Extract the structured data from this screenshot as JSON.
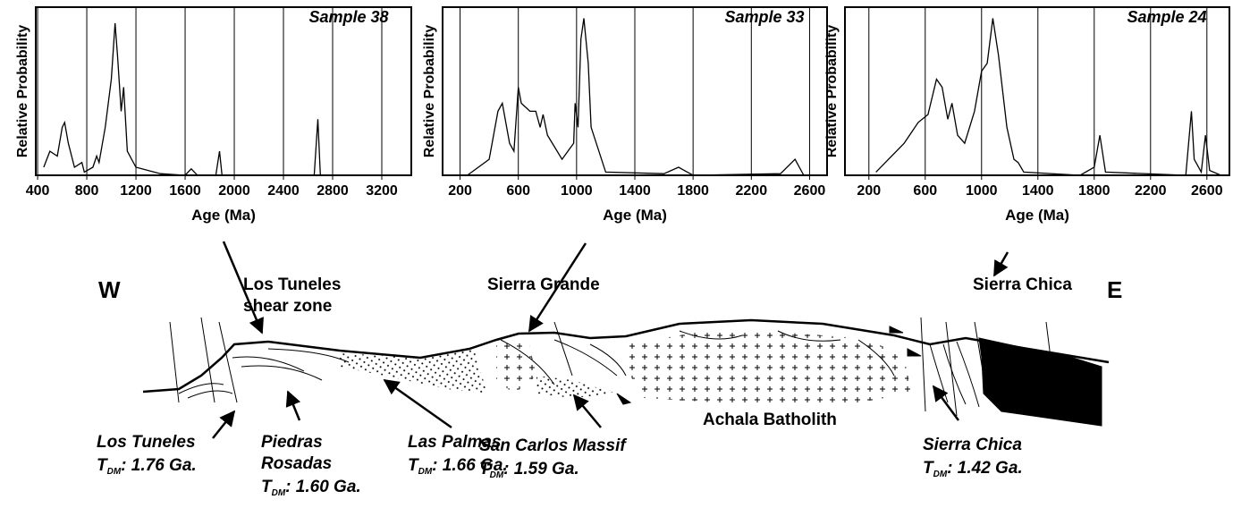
{
  "chart_data": [
    {
      "type": "line",
      "title": "Sample 38",
      "xlabel": "Age (Ma)",
      "ylabel": "Relative Probability",
      "color": "#000000",
      "grid": true,
      "x": [
        450,
        500,
        560,
        600,
        620,
        650,
        700,
        760,
        780,
        850,
        880,
        900,
        950,
        1000,
        1030,
        1050,
        1080,
        1100,
        1130,
        1200,
        1300,
        1400,
        1600,
        1650,
        1700,
        1850,
        1880,
        1900,
        2650,
        2680,
        2700,
        3000
      ],
      "values": [
        0.05,
        0.15,
        0.12,
        0.3,
        0.33,
        0.2,
        0.05,
        0.08,
        0.02,
        0.05,
        0.12,
        0.08,
        0.3,
        0.6,
        0.95,
        0.75,
        0.4,
        0.55,
        0.15,
        0.05,
        0.03,
        0.01,
        0.0,
        0.04,
        0.0,
        0.0,
        0.15,
        0.0,
        0.0,
        0.35,
        0.0,
        0.0
      ],
      "xlim": [
        385,
        3440
      ],
      "xticks": [
        400,
        800,
        1200,
        1600,
        2000,
        2400,
        2800,
        3200
      ],
      "ylim": [
        0,
        1.05
      ]
    },
    {
      "type": "line",
      "title": "Sample 33",
      "xlabel": "Age (Ma)",
      "ylabel": "Relative Probability",
      "color": "#000000",
      "grid": true,
      "x": [
        250,
        400,
        460,
        490,
        540,
        570,
        600,
        620,
        680,
        720,
        750,
        770,
        800,
        900,
        980,
        990,
        1010,
        1030,
        1050,
        1080,
        1100,
        1200,
        1600,
        1700,
        1800,
        2400,
        2500,
        2560
      ],
      "values": [
        0.0,
        0.1,
        0.4,
        0.45,
        0.2,
        0.15,
        0.55,
        0.45,
        0.4,
        0.4,
        0.3,
        0.38,
        0.25,
        0.1,
        0.2,
        0.45,
        0.3,
        0.85,
        0.98,
        0.7,
        0.3,
        0.02,
        0.01,
        0.05,
        0.0,
        0.01,
        0.1,
        0.0
      ],
      "xlim": [
        80,
        2720
      ],
      "xticks": [
        200,
        600,
        1000,
        1400,
        1800,
        2200,
        2600
      ],
      "ylim": [
        0,
        1.05
      ]
    },
    {
      "type": "line",
      "title": "Sample 24",
      "xlabel": "Age (Ma)",
      "ylabel": "Relative Probability",
      "color": "#000000",
      "grid": true,
      "x": [
        250,
        450,
        550,
        620,
        680,
        720,
        760,
        790,
        830,
        880,
        950,
        1000,
        1040,
        1080,
        1120,
        1180,
        1230,
        1260,
        1300,
        1700,
        1800,
        1840,
        1880,
        2450,
        2490,
        2510,
        2560,
        2590,
        2620,
        2700
      ],
      "values": [
        0.02,
        0.2,
        0.33,
        0.38,
        0.6,
        0.55,
        0.35,
        0.45,
        0.25,
        0.2,
        0.4,
        0.65,
        0.7,
        0.98,
        0.75,
        0.3,
        0.1,
        0.08,
        0.02,
        0.0,
        0.05,
        0.25,
        0.02,
        0.0,
        0.4,
        0.1,
        0.02,
        0.25,
        0.03,
        0.0
      ],
      "xlim": [
        30,
        2760
      ],
      "xticks": [
        200,
        600,
        1000,
        1400,
        1800,
        2200,
        2600
      ],
      "ylim": [
        0,
        1.05
      ]
    }
  ],
  "cross_section": {
    "labels": [
      "W",
      "E",
      "Los Tuneles",
      "shear zone",
      "Sierra Grande",
      "Sierra Chica",
      "Achala Batholith"
    ],
    "units": [
      {
        "name": [
          "Los Tuneles"
        ],
        "tdm": "T",
        "sub": "DM",
        "age": ": 1.76 Ga."
      },
      {
        "name": [
          "Piedras",
          "Rosadas"
        ],
        "tdm": "T",
        "sub": "DM",
        "age": ": 1.60 Ga."
      },
      {
        "name": [
          "Las Palmas"
        ],
        "tdm": "T",
        "sub": "DM",
        "age": ": 1.66 Ga."
      },
      {
        "name": [
          "San Carlos Massif"
        ],
        "tdm": "T",
        "sub": "DM",
        "age": ": 1.59 Ga."
      },
      {
        "name": [
          "Sierra Chica"
        ],
        "tdm": "T",
        "sub": "DM",
        "age": ": 1.42 Ga."
      }
    ]
  }
}
